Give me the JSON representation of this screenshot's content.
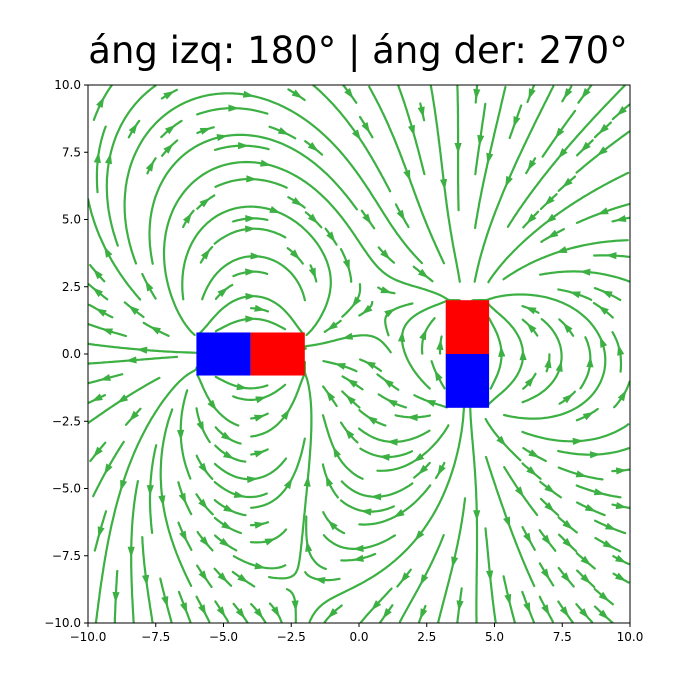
{
  "chart_data": {
    "type": "streamplot",
    "title": "áng izq: 180° | áng der: 270°",
    "xlabel": "",
    "ylabel": "",
    "xlim": [
      -10,
      10
    ],
    "ylim": [
      -10,
      10
    ],
    "xticks": [
      -10,
      -7.5,
      -5,
      -2.5,
      0,
      2.5,
      5,
      7.5,
      10
    ],
    "yticks": [
      -10,
      -7.5,
      -5,
      -2.5,
      0,
      2.5,
      5,
      7.5,
      10
    ],
    "xtick_labels": [
      "−10.0",
      "−7.5",
      "−5.0",
      "−2.5",
      "0.0",
      "2.5",
      "5.0",
      "7.5",
      "10.0"
    ],
    "ytick_labels": [
      "−10.0",
      "−7.5",
      "−5.0",
      "−2.5",
      "0.0",
      "2.5",
      "5.0",
      "7.5",
      "10.0"
    ],
    "grid": false,
    "stream_color": "#3cb043",
    "magnets": [
      {
        "name": "left",
        "angle_deg": 180,
        "center": [
          -4,
          0
        ],
        "length": 4,
        "width": 1.6,
        "halves": [
          {
            "x": [
              -6,
              -4
            ],
            "y": [
              -0.8,
              0.8
            ],
            "color": "#0000ff"
          },
          {
            "x": [
              -4,
              -2
            ],
            "y": [
              -0.8,
              0.8
            ],
            "color": "#ff0000"
          }
        ]
      },
      {
        "name": "right",
        "angle_deg": 270,
        "center": [
          4,
          0
        ],
        "length": 4,
        "width": 1.6,
        "halves": [
          {
            "x": [
              3.2,
              4.8
            ],
            "y": [
              0,
              2
            ],
            "color": "#ff0000"
          },
          {
            "x": [
              3.2,
              4.8
            ],
            "y": [
              -2,
              0
            ],
            "color": "#0000ff"
          }
        ]
      }
    ]
  }
}
